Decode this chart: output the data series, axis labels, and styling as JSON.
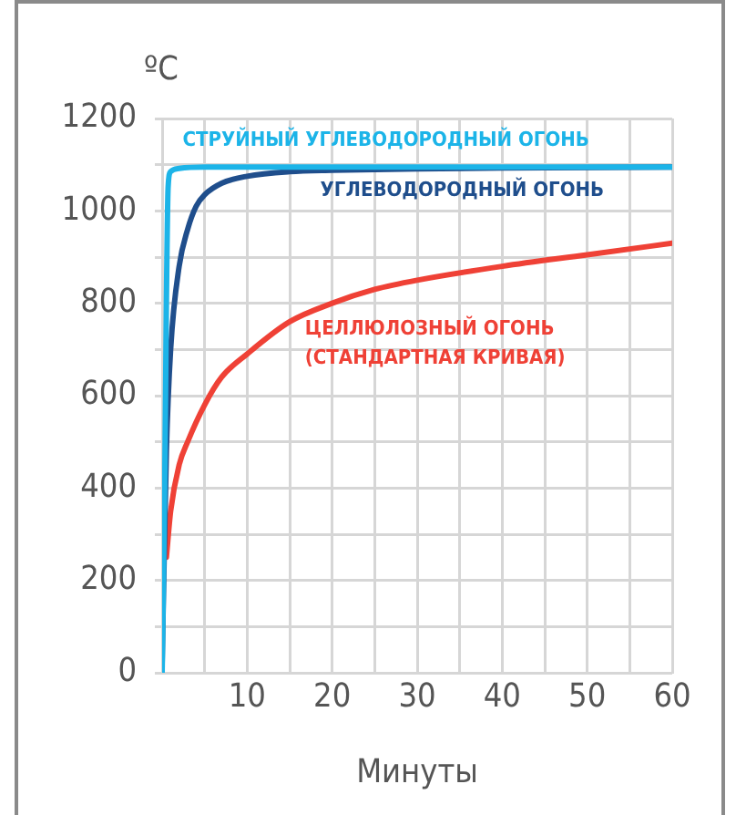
{
  "chart_data": {
    "type": "line",
    "xlabel": "Минуты",
    "ylabel": "ºC",
    "xlim": [
      0,
      60
    ],
    "ylim": [
      0,
      1200
    ],
    "xticks": [
      {
        "value": 0,
        "label": null
      },
      {
        "value": 5,
        "label": null
      },
      10,
      {
        "value": 15,
        "label": null
      },
      20,
      {
        "value": 25,
        "label": null
      },
      30,
      {
        "value": 35,
        "label": null
      },
      40,
      {
        "value": 45,
        "label": null
      },
      50,
      {
        "value": 55,
        "label": null
      },
      60
    ],
    "yticks": [
      0,
      {
        "value": 100,
        "label": null
      },
      200,
      {
        "value": 300,
        "label": null
      },
      400,
      {
        "value": 500,
        "label": null
      },
      600,
      {
        "value": 700,
        "label": null
      },
      800,
      {
        "value": 900,
        "label": null
      },
      1000,
      {
        "value": 1100,
        "label": null
      },
      1200
    ],
    "grid": true,
    "marker": "none",
    "line_style": "solid",
    "series": [
      {
        "name": "СТРУЙНЫЙ УГЛЕВОДОРОДНЫЙ ОГОНЬ",
        "color": "#1cb4e8",
        "x": [
          0,
          0.3,
          0.5,
          0.7,
          1,
          2,
          5,
          10,
          60
        ],
        "values": [
          0,
          400,
          800,
          1050,
          1085,
          1092,
          1095,
          1095,
          1095
        ]
      },
      {
        "name": "УГЛЕВОДОРОДНЫЙ ОГОНЬ",
        "color": "#1f4e8c",
        "x": [
          0,
          0.5,
          1,
          2,
          3,
          4,
          5,
          7,
          10,
          15,
          20,
          30,
          40,
          60
        ],
        "values": [
          20,
          480,
          700,
          880,
          960,
          1010,
          1035,
          1060,
          1075,
          1085,
          1088,
          1091,
          1093,
          1095
        ]
      },
      {
        "name": "ЦЕЛЛЮЛОЗНЫЙ ОГОНЬ (СТАНДАРТНАЯ КРИВАЯ)",
        "color": "#ef4136",
        "x": [
          0.5,
          1,
          2,
          3,
          5,
          7,
          10,
          15,
          20,
          25,
          30,
          40,
          50,
          60
        ],
        "values": [
          250,
          350,
          450,
          500,
          580,
          640,
          690,
          760,
          800,
          830,
          850,
          880,
          905,
          930
        ]
      }
    ]
  }
}
